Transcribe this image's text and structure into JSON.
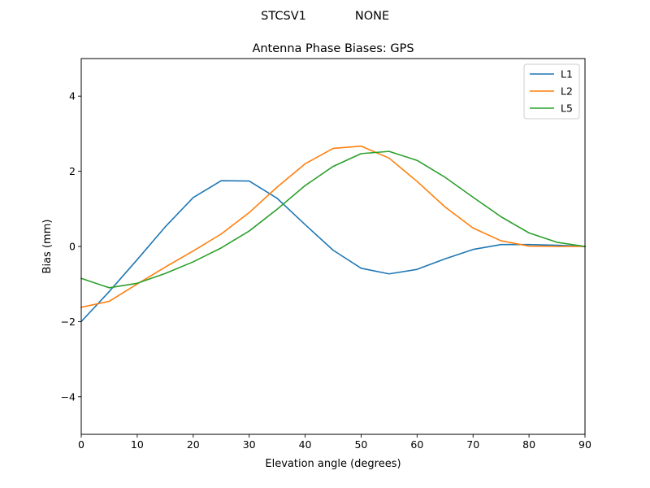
{
  "header": {
    "station": "STCSV1",
    "radome": "NONE"
  },
  "chart_data": {
    "type": "line",
    "title": "Antenna Phase Biases: GPS",
    "xlabel": "Elevation angle (degrees)",
    "ylabel": "Bias (mm)",
    "xlim": [
      0,
      90
    ],
    "ylim": [
      -5,
      5
    ],
    "xticks": [
      0,
      10,
      20,
      30,
      40,
      50,
      60,
      70,
      80,
      90
    ],
    "yticks": [
      -4,
      -2,
      0,
      2,
      4
    ],
    "ytick_labels": [
      "−4",
      "−2",
      "0",
      "2",
      "4"
    ],
    "grid": false,
    "legend_position": "top-right",
    "x": [
      0,
      5,
      10,
      15,
      20,
      25,
      30,
      35,
      40,
      45,
      50,
      55,
      60,
      65,
      70,
      75,
      80,
      85,
      90
    ],
    "series": [
      {
        "name": "L1",
        "color": "#1f77b4",
        "values": [
          -2.0,
          -1.2,
          -0.35,
          0.52,
          1.3,
          1.75,
          1.74,
          1.28,
          0.58,
          -0.1,
          -0.58,
          -0.73,
          -0.61,
          -0.33,
          -0.08,
          0.05,
          0.05,
          0.03,
          0.0
        ]
      },
      {
        "name": "L2",
        "color": "#ff7f0e",
        "values": [
          -1.62,
          -1.46,
          -1.0,
          -0.55,
          -0.12,
          0.33,
          0.9,
          1.58,
          2.2,
          2.61,
          2.67,
          2.35,
          1.73,
          1.05,
          0.49,
          0.15,
          0.01,
          0.0,
          0.0
        ]
      },
      {
        "name": "L5",
        "color": "#2ca02c",
        "values": [
          -0.85,
          -1.1,
          -0.98,
          -0.72,
          -0.41,
          -0.04,
          0.41,
          0.99,
          1.62,
          2.13,
          2.47,
          2.53,
          2.29,
          1.84,
          1.31,
          0.79,
          0.36,
          0.11,
          0.0
        ]
      }
    ]
  }
}
